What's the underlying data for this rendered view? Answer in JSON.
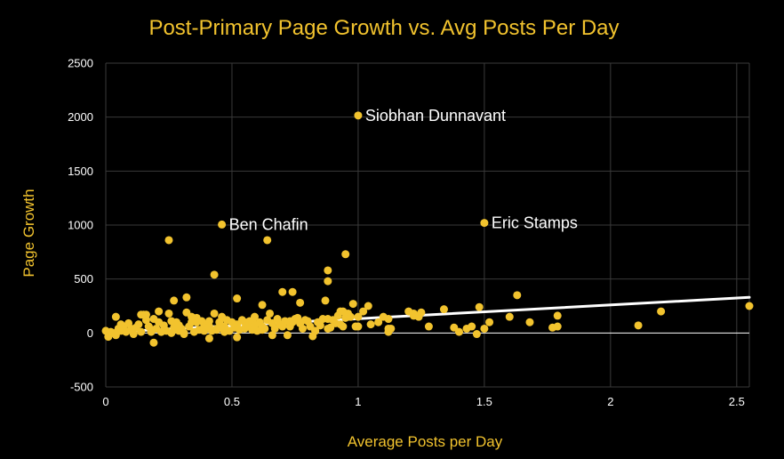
{
  "chart_data": {
    "type": "scatter",
    "title": "Post-Primary Page Growth vs. Avg Posts Per Day",
    "xlabel": "Average Posts per Day",
    "ylabel": "Page Growth",
    "xlim": [
      0,
      2.55
    ],
    "ylim": [
      -500,
      2500
    ],
    "x_ticks": [
      0,
      0.5,
      1,
      1.5,
      2,
      2.5
    ],
    "x_tick_labels": [
      "0",
      "0.5",
      "1",
      "1.5",
      "2",
      "2.5"
    ],
    "y_ticks": [
      -500,
      0,
      500,
      1000,
      1500,
      2000,
      2500
    ],
    "y_tick_labels": [
      "-500",
      "0",
      "500",
      "1000",
      "1500",
      "2000",
      "2500"
    ],
    "grid": true,
    "colors": {
      "points": "#f2c32e",
      "trendline": "#ffffff",
      "text": "#f2c32e",
      "background": "#000000"
    },
    "trendline": {
      "x": [
        0,
        2.55
      ],
      "y": [
        5,
        330
      ]
    },
    "annotations": [
      {
        "label": "Siobhan Dunnavant",
        "x": 1.0,
        "y": 2015
      },
      {
        "label": "Ben Chafin",
        "x": 0.46,
        "y": 1005
      },
      {
        "label": "Eric Stamps",
        "x": 1.5,
        "y": 1020
      }
    ],
    "points": {
      "x": [
        0.0,
        0.01,
        0.02,
        0.03,
        0.04,
        0.05,
        0.06,
        0.07,
        0.08,
        0.09,
        0.1,
        0.11,
        0.12,
        0.13,
        0.14,
        0.15,
        0.16,
        0.17,
        0.18,
        0.19,
        0.2,
        0.21,
        0.22,
        0.23,
        0.24,
        0.25,
        0.26,
        0.27,
        0.28,
        0.29,
        0.3,
        0.31,
        0.32,
        0.33,
        0.34,
        0.35,
        0.36,
        0.37,
        0.38,
        0.39,
        0.4,
        0.41,
        0.42,
        0.43,
        0.44,
        0.45,
        0.46,
        0.47,
        0.48,
        0.49,
        0.5,
        0.51,
        0.52,
        0.53,
        0.54,
        0.55,
        0.56,
        0.57,
        0.58,
        0.59,
        0.6,
        0.61,
        0.62,
        0.63,
        0.64,
        0.65,
        0.66,
        0.67,
        0.68,
        0.69,
        0.7,
        0.71,
        0.72,
        0.73,
        0.74,
        0.75,
        0.76,
        0.77,
        0.78,
        0.79,
        0.8,
        0.81,
        0.82,
        0.83,
        0.84,
        0.85,
        0.86,
        0.87,
        0.88,
        0.89,
        0.9,
        0.91,
        0.92,
        0.93,
        0.94,
        0.95,
        0.96,
        0.97,
        0.98,
        0.99,
        1.0,
        1.02,
        1.05,
        1.08,
        1.1,
        1.12,
        1.13,
        1.2,
        1.22,
        1.24,
        1.25,
        1.28,
        1.34,
        1.38,
        1.4,
        1.43,
        1.45,
        1.47,
        1.48,
        1.5,
        1.52,
        1.63,
        1.68,
        1.77,
        1.79,
        1.79,
        2.11,
        2.2,
        2.55,
        0.04,
        0.06,
        0.1,
        0.14,
        0.17,
        0.19,
        0.22,
        0.26,
        0.27,
        0.29,
        0.31,
        0.34,
        0.36,
        0.39,
        0.41,
        0.44,
        0.47,
        0.52,
        0.56,
        0.58,
        0.62,
        0.66,
        0.7,
        0.73,
        0.77,
        0.83,
        0.88,
        0.93,
        1.0,
        1.12,
        0.25,
        0.43,
        0.64,
        0.88,
        0.95,
        0.74,
        0.7,
        0.88,
        0.52,
        0.62,
        0.27,
        0.32,
        0.16,
        0.21,
        0.45,
        0.55,
        0.94,
        1.04,
        1.22,
        1.6,
        0.18,
        0.59,
        0.77,
        1.12,
        0.41
      ],
      "y": [
        20,
        -35,
        10,
        0,
        150,
        40,
        20,
        60,
        10,
        90,
        30,
        -10,
        50,
        80,
        10,
        170,
        120,
        60,
        30,
        -90,
        40,
        100,
        10,
        70,
        20,
        180,
        0,
        50,
        100,
        20,
        40,
        0,
        190,
        60,
        150,
        10,
        100,
        30,
        110,
        60,
        80,
        -50,
        20,
        180,
        40,
        100,
        150,
        60,
        120,
        20,
        100,
        50,
        80,
        30,
        120,
        40,
        80,
        110,
        30,
        150,
        20,
        100,
        60,
        40,
        120,
        180,
        90,
        40,
        130,
        80,
        70,
        110,
        -20,
        60,
        100,
        130,
        140,
        90,
        40,
        120,
        110,
        60,
        -30,
        20,
        100,
        70,
        130,
        300,
        40,
        50,
        120,
        90,
        160,
        200,
        60,
        140,
        180,
        150,
        270,
        60,
        150,
        200,
        80,
        100,
        150,
        130,
        40,
        200,
        160,
        150,
        190,
        60,
        220,
        50,
        10,
        40,
        60,
        -10,
        240,
        40,
        100,
        350,
        100,
        50,
        60,
        160,
        70,
        200,
        250,
        -20,
        80,
        40,
        170,
        60,
        130,
        10,
        110,
        30,
        70,
        -10,
        100,
        140,
        20,
        60,
        30,
        10,
        -40,
        60,
        110,
        30,
        -20,
        60,
        110,
        90,
        20,
        130,
        80,
        60,
        40,
        860,
        540,
        860,
        580,
        730,
        380,
        380,
        480,
        320,
        260,
        300,
        330,
        170,
        200,
        50,
        100,
        200,
        250,
        180,
        150,
        10,
        70,
        280,
        10,
        110
      ]
    }
  }
}
